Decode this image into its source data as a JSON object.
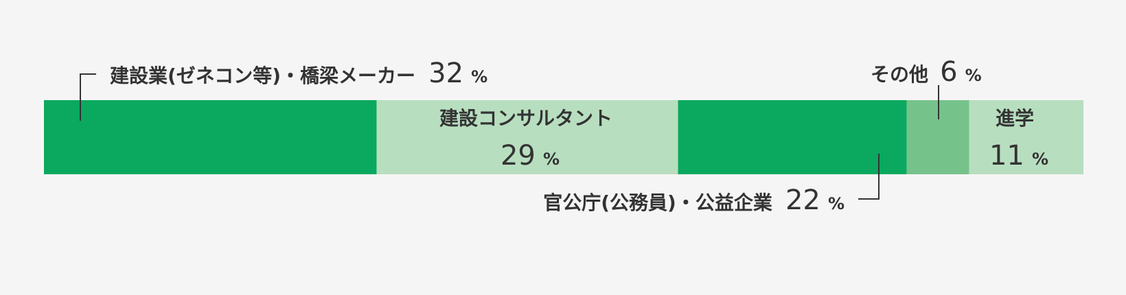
{
  "chart_data": {
    "type": "bar",
    "stacked": true,
    "orientation": "horizontal",
    "unit": "%",
    "segments": [
      {
        "name": "建設業(ゼネコン等)・橋梁メーカー",
        "value": 32,
        "color": "#0aa95f"
      },
      {
        "name": "建設コンサルタント",
        "value": 29,
        "color": "#b8dec0"
      },
      {
        "name": "官公庁(公務員)・公益企業",
        "value": 22,
        "color": "#0aa95f"
      },
      {
        "name": "その他",
        "value": 6,
        "color": "#76c28b"
      },
      {
        "name": "進学",
        "value": 11,
        "color": "#b8dec0"
      }
    ]
  }
}
